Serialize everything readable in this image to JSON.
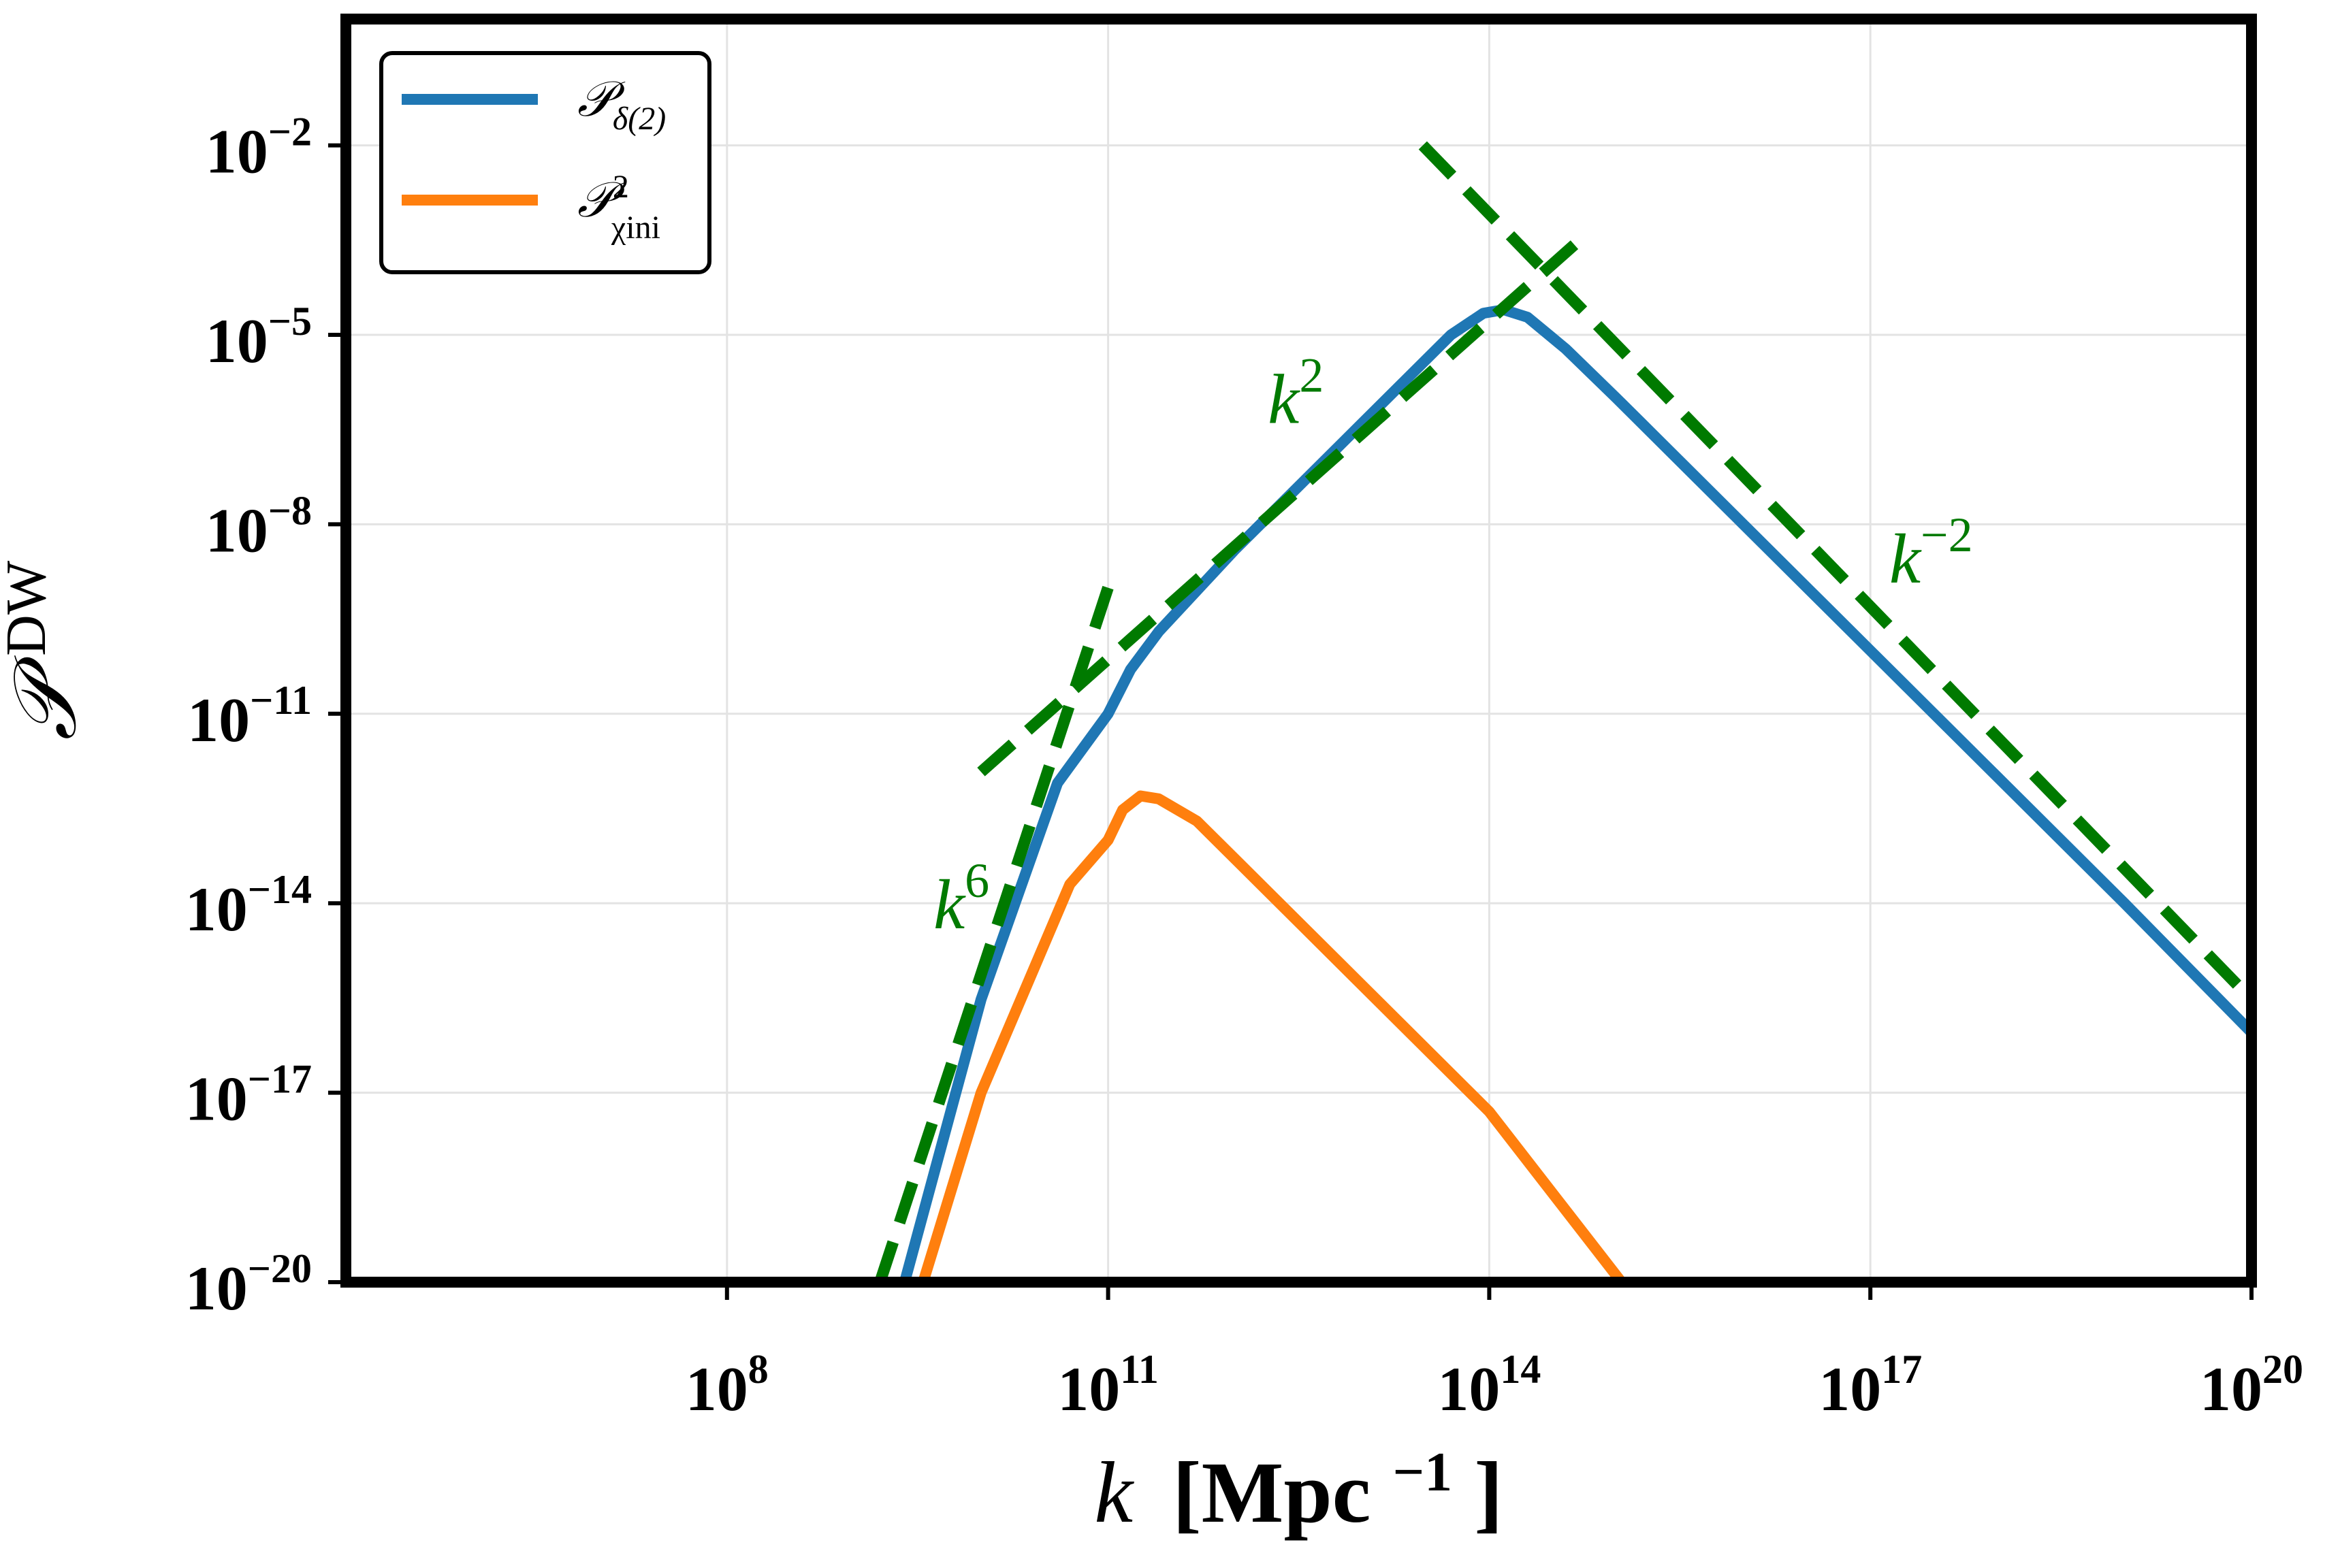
{
  "chart_data": {
    "type": "line",
    "xscale": "log",
    "yscale": "log",
    "xlim": [
      100000.0,
      1e+20
    ],
    "ylim": [
      1e-20,
      1.0
    ],
    "xlabel_main": "k",
    "xlabel_unit_open": "[Mpc",
    "xlabel_unit_exp": "−1",
    "xlabel_unit_close": "]",
    "ylabel_main": "𝒫",
    "ylabel_sup": "DW",
    "x_ticks": [
      {
        "value": 100000000.0,
        "base": "10",
        "exp": "8"
      },
      {
        "value": 100000000000.0,
        "base": "10",
        "exp": "11"
      },
      {
        "value": 100000000000000.0,
        "base": "10",
        "exp": "14"
      },
      {
        "value": 1e+17,
        "base": "10",
        "exp": "17"
      },
      {
        "value": 1e+20,
        "base": "10",
        "exp": "20"
      }
    ],
    "y_ticks": [
      {
        "value": 0.01,
        "base": "10",
        "exp": "−2"
      },
      {
        "value": 1e-05,
        "base": "10",
        "exp": "−5"
      },
      {
        "value": 1e-08,
        "base": "10",
        "exp": "−8"
      },
      {
        "value": 1e-11,
        "base": "10",
        "exp": "−11"
      },
      {
        "value": 1e-14,
        "base": "10",
        "exp": "−14"
      },
      {
        "value": 1e-17,
        "base": "10",
        "exp": "−17"
      },
      {
        "value": 1e-20,
        "base": "10",
        "exp": "−20"
      }
    ],
    "grid": true,
    "legend_position": "top-left",
    "series": [
      {
        "name": "𝒫",
        "name_sub": "δ(2)",
        "color": "#1f77b4",
        "points": [
          [
            2500000000.0,
            1e-20
          ],
          [
            10000000000.0,
            3e-16
          ],
          [
            40000000000.0,
            8e-13
          ],
          [
            100000000000.0,
            1e-11
          ],
          [
            150000000000.0,
            5e-11
          ],
          [
            250000000000.0,
            2e-10
          ],
          [
            1000000000000.0,
            4e-09
          ],
          [
            10000000000000.0,
            4e-07
          ],
          [
            50000000000000.0,
            1e-05
          ],
          [
            90000000000000.0,
            2.2e-05
          ],
          [
            130000000000000.0,
            2.5e-05
          ],
          [
            200000000000000.0,
            1.9e-05
          ],
          [
            400000000000000.0,
            6e-06
          ],
          [
            1000000000000000.0,
            1e-06
          ],
          [
            1e+16,
            1e-08
          ],
          [
            1e+17,
            1e-10
          ],
          [
            1e+18,
            1e-12
          ],
          [
            1e+19,
            1e-14
          ],
          [
            1e+20,
            9e-17
          ]
        ]
      },
      {
        "name": "𝒫",
        "name_sup": "2",
        "name_sub": "χini",
        "color": "#ff7f0e",
        "points": [
          [
            3500000000.0,
            1e-20
          ],
          [
            10000000000.0,
            1e-17
          ],
          [
            50000000000.0,
            2e-14
          ],
          [
            100000000000.0,
            1e-13
          ],
          [
            130000000000.0,
            3e-13
          ],
          [
            180000000000.0,
            5e-13
          ],
          [
            250000000000.0,
            4.5e-13
          ],
          [
            500000000000.0,
            2e-13
          ],
          [
            1000000000000.0,
            5e-14
          ],
          [
            10000000000000.0,
            5e-16
          ],
          [
            100000000000000.0,
            5e-18
          ],
          [
            1100000000000000.0,
            1e-20
          ]
        ]
      },
      {
        "name": "k⁶",
        "color": "#007a00",
        "style": "dashed",
        "points": [
          [
            1600000000.0,
            1e-20
          ],
          [
            100000000000.0,
            1e-09
          ]
        ]
      },
      {
        "name": "k²",
        "color": "#007a00",
        "style": "dashed",
        "points": [
          [
            10000000000.0,
            1.2e-12
          ],
          [
            500000000000000.0,
            0.0003
          ]
        ]
      },
      {
        "name": "k⁻²",
        "color": "#007a00",
        "style": "dashed",
        "points": [
          [
            30000000000000.0,
            0.01
          ],
          [
            1e+20,
            3e-16
          ]
        ]
      }
    ],
    "annotations": [
      {
        "base": "k",
        "exp": "2",
        "x": 3000000000000.0,
        "y": 4e-07
      },
      {
        "base": "k",
        "exp": "−2",
        "x": 3e+17,
        "y": 1.2e-09
      },
      {
        "base": "k",
        "exp": "6",
        "x": 7000000000.0,
        "y": 4e-15
      }
    ]
  }
}
